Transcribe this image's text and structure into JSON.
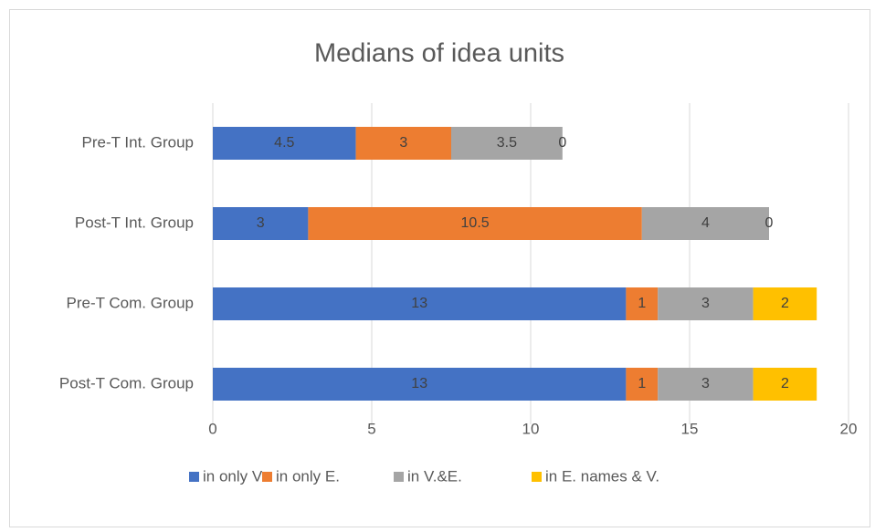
{
  "chart_data": {
    "type": "stacked-bar-horizontal",
    "title": "Medians of idea units",
    "categories": [
      "Pre-T Int. Group",
      "Post-T Int. Group",
      "Pre-T Com. Group",
      "Post-T Com. Group"
    ],
    "series": [
      {
        "name": "in only V.",
        "color": "#4472c4",
        "values": [
          4.5,
          3,
          13,
          13
        ]
      },
      {
        "name": "in only E.",
        "color": "#ed7d31",
        "values": [
          3,
          10.5,
          1,
          1
        ]
      },
      {
        "name": "in V.&E.",
        "color": "#a5a5a5",
        "values": [
          3.5,
          4,
          3,
          3
        ]
      },
      {
        "name": "in E. names & V.",
        "color": "#ffc000",
        "values": [
          0,
          0,
          2,
          2
        ]
      }
    ],
    "xlim": [
      0,
      20
    ],
    "xticks": [
      0,
      5,
      10,
      15,
      20
    ],
    "grid": true,
    "legend": "bottom"
  }
}
